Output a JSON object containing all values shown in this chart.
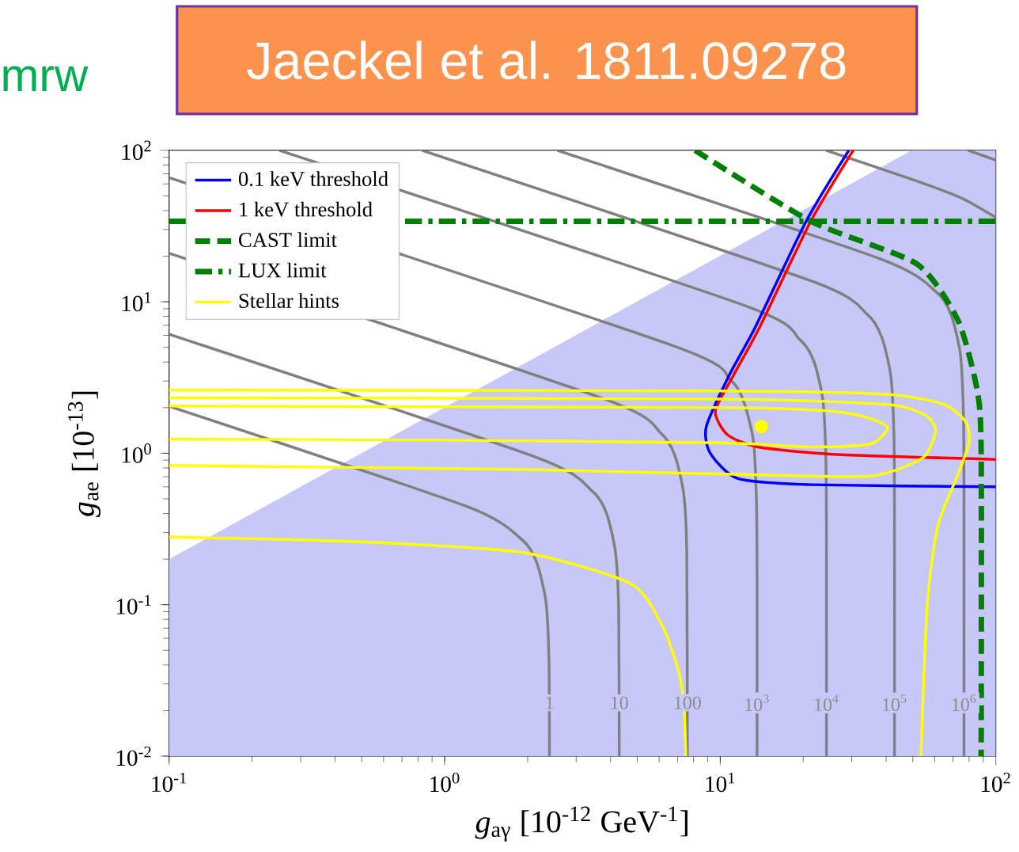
{
  "chart_data": {
    "type": "line",
    "xlabel": "*g*$_{aγ}$ [10$^{-12}$ GeV$^{-1}$]",
    "ylabel": "*g*$_{ae}$ [10$^{-13}$]",
    "log": "xy",
    "xlim": [
      0.1,
      100
    ],
    "ylim": [
      0.01,
      100
    ],
    "xticks": [
      {
        "value": 0.1,
        "label": "10$^{-1}$"
      },
      {
        "value": 1,
        "label": "10$^{0}$"
      },
      {
        "value": 10,
        "label": "10$^{1}$"
      },
      {
        "value": 100,
        "label": "10$^{2}$"
      }
    ],
    "yticks": [
      {
        "value": 0.01,
        "label": "10$^{-2}$"
      },
      {
        "value": 0.1,
        "label": "10$^{-1}$"
      },
      {
        "value": 1,
        "label": "10$^{0}$"
      },
      {
        "value": 10,
        "label": "10$^{1}$"
      },
      {
        "value": 100,
        "label": "10$^{2}$"
      }
    ],
    "legend": "top left",
    "series": [
      {
        "type": "area",
        "color": "#c8c8f8",
        "x": [
          0.1,
          49.6,
          100
        ],
        "values": [
          0.2,
          100,
          100
        ]
      },
      {
        "color": "#808080",
        "line_style": "solid",
        "x": [
          0.1,
          1.2,
          1.92,
          2.16,
          2.33,
          2.39,
          2.4
        ],
        "values": [
          2.04,
          0.446,
          0.266,
          0.189,
          0.105,
          0.043,
          0.01
        ]
      },
      {
        "color": "#808080",
        "line_style": "solid",
        "x": [
          0.1,
          2.15,
          3.44,
          3.87,
          4.17,
          4.28,
          4.3
        ],
        "values": [
          6.1,
          0.94,
          0.56,
          0.4,
          0.22,
          0.09,
          0.01
        ]
      },
      {
        "color": "#808080",
        "line_style": "solid",
        "x": [
          0.1,
          3.8,
          6.08,
          6.84,
          7.37,
          7.56,
          7.6
        ],
        "values": [
          20.9,
          2.28,
          1.36,
          0.97,
          0.54,
          0.22,
          0.01
        ]
      },
      {
        "color": "#808080",
        "line_style": "solid",
        "x": [
          0.1,
          6.8,
          10.9,
          12.2,
          13.2,
          13.53,
          13.6,
          13.6
        ],
        "values": [
          66,
          5.1,
          3.04,
          2.16,
          1.2,
          0.49,
          0.155,
          0.01
        ]
      },
      {
        "color": "#808080",
        "line_style": "solid",
        "x": [
          0.251,
          12.15,
          19.4,
          21.9,
          23.6,
          24.18,
          24.29,
          24.3
        ],
        "values": [
          100,
          9.5,
          5.65,
          4.02,
          2.22,
          0.91,
          0.29,
          0.01
        ]
      },
      {
        "color": "#808080",
        "line_style": "solid",
        "x": [
          0.826,
          21.45,
          34.3,
          38.6,
          41.6,
          42.7,
          42.88,
          42.9
        ],
        "values": [
          100,
          13.7,
          8.2,
          5.8,
          3.23,
          1.32,
          0.42,
          0.01
        ]
      },
      {
        "color": "#808080",
        "line_style": "solid",
        "x": [
          2.56,
          38.35,
          61.4,
          69.0,
          74.4,
          76.3,
          76.66,
          76.7
        ],
        "values": [
          100,
          19.1,
          11.4,
          8.1,
          4.5,
          1.84,
          0.58,
          0.01
        ]
      },
      {
        "color": "#808080",
        "line_style": "solid",
        "x": [
          24.2,
          50,
          75,
          100
        ],
        "values": [
          100,
          64,
          48.4,
          36
        ]
      },
      {
        "color": "#808080",
        "line_style": "solid",
        "x": [
          79.4,
          100
        ],
        "values": [
          100,
          86
        ]
      },
      {
        "name": "0.1 keV threshold",
        "color": "#0000ff",
        "line_style": "solid",
        "x": [
          29.3,
          20.5,
          13.4,
          10.8,
          8.9,
          9.2,
          11.6,
          21.3,
          100
        ],
        "values": [
          100,
          34,
          6.8,
          3.3,
          1.5,
          1.0,
          0.68,
          0.62,
          0.6
        ]
      },
      {
        "name": "1 keV threshold",
        "color": "#ff0000",
        "line_style": "solid",
        "x": [
          30.4,
          21.3,
          13.9,
          11.2,
          9.6,
          10.6,
          13.7,
          26.5,
          100
        ],
        "values": [
          100,
          34,
          6.8,
          3.3,
          1.9,
          1.33,
          1.1,
          0.98,
          0.91
        ]
      },
      {
        "name": "CAST limit",
        "color": "#008000",
        "line_style": "dashed",
        "x": [
          8.1,
          21.3,
          51.6,
          73,
          85.6,
          88.5,
          88.5
        ],
        "values": [
          100,
          34,
          17.8,
          7.5,
          2.6,
          1.0,
          0.01
        ]
      },
      {
        "name": "LUX limit",
        "color": "#008000",
        "line_style": "dashdot",
        "x": [
          0.1,
          100
        ],
        "values": [
          34,
          34
        ]
      },
      {
        "name": "Stellar hints",
        "color": "#ffff00",
        "line_style": "solid",
        "x": [
          0.1,
          10,
          25,
          35,
          40.5,
          35,
          21.3,
          10,
          1,
          0.1
        ],
        "values": [
          2.05,
          2.0,
          1.9,
          1.7,
          1.47,
          1.15,
          1.1,
          1.17,
          1.22,
          1.24
        ]
      },
      {
        "color": "#ffff00",
        "line_style": "solid",
        "x": [
          0.1,
          10,
          40,
          55,
          60.5,
          55,
          40,
          26.6,
          2,
          0.1
        ],
        "values": [
          2.32,
          2.28,
          2.1,
          1.8,
          1.43,
          0.95,
          0.74,
          0.7,
          0.78,
          0.83
        ]
      },
      {
        "color": "#ffff00",
        "line_style": "solid",
        "x": [
          0.1,
          10,
          40,
          65,
          78,
          80,
          73,
          61.6,
          56.4,
          53.5
        ],
        "values": [
          2.61,
          2.58,
          2.45,
          2.1,
          1.6,
          1.18,
          0.73,
          0.33,
          0.1,
          0.01
        ]
      },
      {
        "color": "#ffff00",
        "line_style": "solid",
        "x": [
          0.1,
          0.5,
          1.96,
          4.76,
          6.2,
          7.1,
          7.4,
          7.5
        ],
        "values": [
          0.28,
          0.26,
          0.22,
          0.137,
          0.071,
          0.035,
          0.02,
          0.01
        ]
      },
      {
        "type": "scatter",
        "color": "#ffff00",
        "marker": "circle",
        "x": [
          14.1
        ],
        "values": [
          1.5
        ]
      }
    ],
    "annotations": [
      "Jaeckel et al. 1811.09278",
      "mrw",
      {
        "text": "1",
        "x": 2.4,
        "y": 0.0225
      },
      {
        "text": "10",
        "x": 4.3,
        "y": 0.0225
      },
      {
        "text": "100",
        "x": 7.6,
        "y": 0.0225
      },
      {
        "text": "10$^{3}$",
        "x": 13.6,
        "y": 0.0225
      },
      {
        "text": "10$^{4}$",
        "x": 24.3,
        "y": 0.0225
      },
      {
        "text": "10$^{5}$",
        "x": 42.9,
        "y": 0.0225
      },
      {
        "text": "10$^{6}$",
        "x": 76.7,
        "y": 0.0225
      }
    ]
  }
}
